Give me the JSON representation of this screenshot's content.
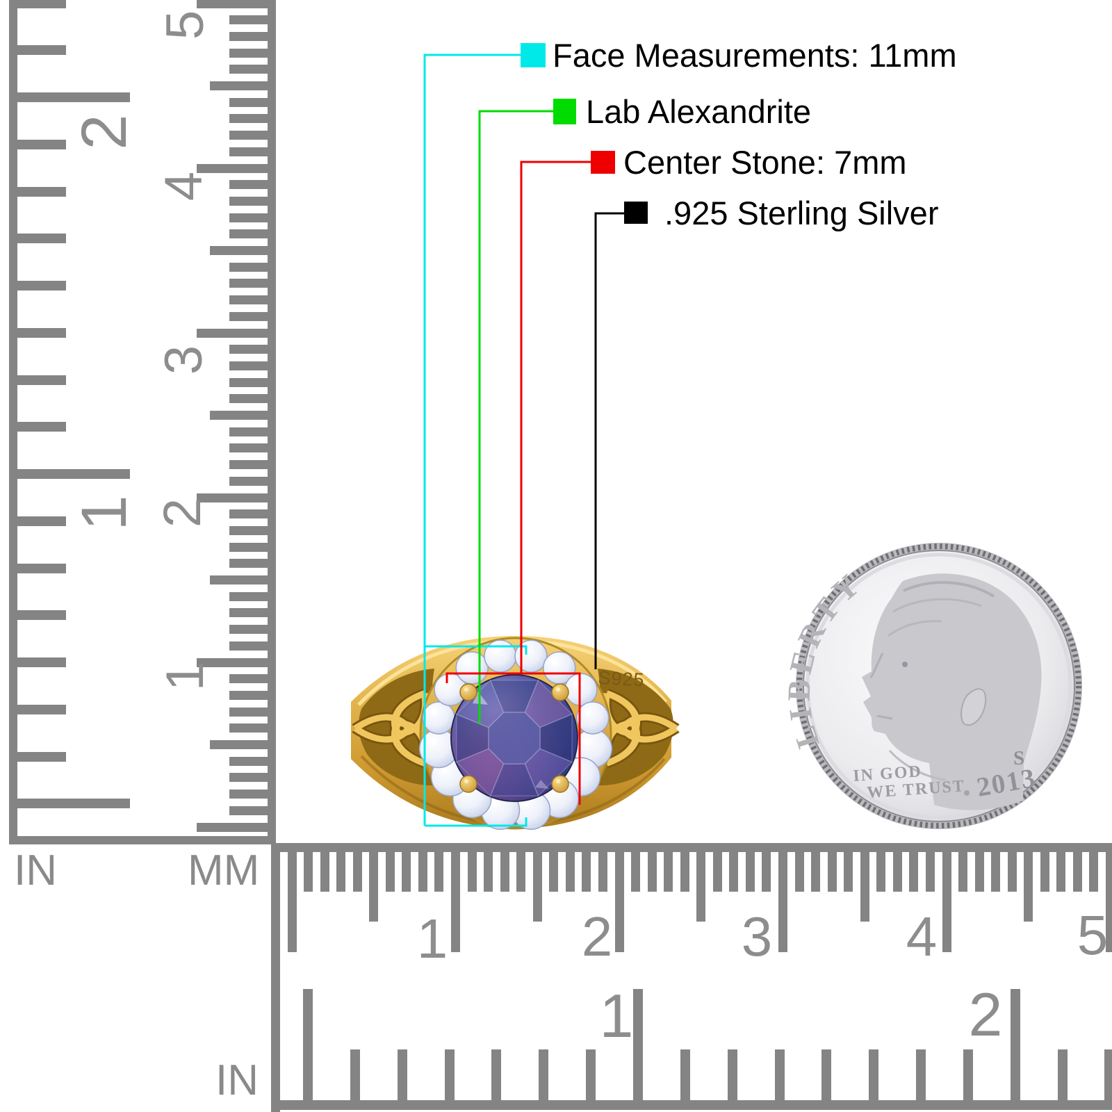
{
  "legend": {
    "items": [
      {
        "name": "face-measurements",
        "swatch_color": "#00e9e9",
        "label": "Face Measurements: 11mm"
      },
      {
        "name": "lab-alexandrite",
        "swatch_color": "#00dc00",
        "label": "Lab Alexandrite"
      },
      {
        "name": "center-stone",
        "swatch_color": "#ee0000",
        "label": "Center Stone: 7mm"
      },
      {
        "name": "sterling-silver",
        "swatch_color": "#000000",
        "label": ".925 Sterling Silver"
      }
    ]
  },
  "rulers": {
    "left_inch": {
      "unit": "IN",
      "numbers": [
        "2",
        "1"
      ]
    },
    "left_cm": {
      "unit": "MM",
      "numbers": [
        "5",
        "4",
        "3",
        "2",
        "1"
      ]
    },
    "bottom_cm": {
      "numbers": [
        "1",
        "2",
        "3",
        "4",
        "5"
      ]
    },
    "bottom_inch": {
      "unit": "IN",
      "numbers": [
        "1",
        "2"
      ]
    }
  },
  "ring": {
    "stamp": "S925",
    "band_color": "#d9a93f",
    "stone_color": "#44478d",
    "halo_stone_color": "#e9edf8"
  },
  "coin": {
    "legend_text": "LIBERTY",
    "motto_line1": "IN GOD",
    "motto_line2": "WE TRUST",
    "mint_mark": "S",
    "year": "2013"
  },
  "colors": {
    "ruler_gray": "#848484",
    "ruler_number_gray": "#8d8d8d"
  }
}
